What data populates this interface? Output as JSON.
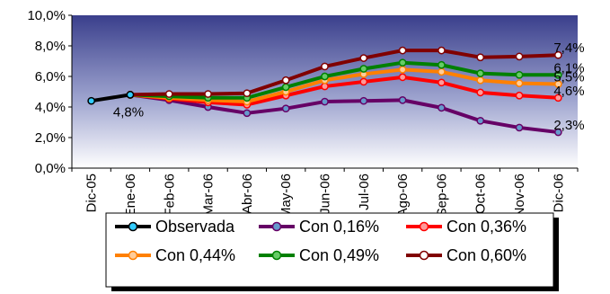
{
  "chart_data": {
    "type": "line",
    "title": "",
    "xlabel": "",
    "ylabel": "",
    "categories": [
      "Dic-05",
      "Ene-06",
      "Feb-06",
      "Mar-06",
      "Abr-06",
      "May-06",
      "Jun-06",
      "Jul-06",
      "Ago-06",
      "Sep-06",
      "Oct-06",
      "Nov-06",
      "Dic-06"
    ],
    "ylim": [
      0,
      10
    ],
    "yticks": [
      "0,0%",
      "2,0%",
      "4,0%",
      "6,0%",
      "8,0%",
      "10,0%"
    ],
    "ytick_values": [
      0,
      2,
      4,
      6,
      8,
      10
    ],
    "grid": false,
    "legend_position": "bottom",
    "series": [
      {
        "name": "Observada",
        "color": "#000000",
        "marker_fill": "#33ccff",
        "values": [
          4.4,
          4.8,
          null,
          null,
          null,
          null,
          null,
          null,
          null,
          null,
          null,
          null,
          null
        ]
      },
      {
        "name": "Con 0,16%",
        "color": "#660066",
        "marker_fill": "#6699cc",
        "values": [
          null,
          4.8,
          4.45,
          4.0,
          3.6,
          3.9,
          4.35,
          4.4,
          4.45,
          3.95,
          3.1,
          2.65,
          2.35
        ]
      },
      {
        "name": "Con 0,36%",
        "color": "#ff0000",
        "marker_fill": "#ff9999",
        "values": [
          null,
          4.8,
          4.55,
          4.3,
          4.15,
          4.75,
          5.35,
          5.65,
          5.95,
          5.6,
          4.95,
          4.75,
          4.6
        ]
      },
      {
        "name": "Con 0,44%",
        "color": "#ff8000",
        "marker_fill": "#ffcc99",
        "values": [
          null,
          4.8,
          4.6,
          4.45,
          4.35,
          5.0,
          5.75,
          6.15,
          6.45,
          6.3,
          5.75,
          5.55,
          5.5
        ]
      },
      {
        "name": "Con 0,49%",
        "color": "#008000",
        "marker_fill": "#66cc66",
        "values": [
          null,
          4.8,
          4.7,
          4.6,
          4.6,
          5.3,
          6.0,
          6.5,
          6.9,
          6.75,
          6.2,
          6.1,
          6.1
        ]
      },
      {
        "name": "Con 0,60%",
        "color": "#800000",
        "marker_fill": "#ffffff",
        "values": [
          null,
          4.8,
          4.85,
          4.85,
          4.9,
          5.75,
          6.65,
          7.2,
          7.7,
          7.7,
          7.25,
          7.3,
          7.4
        ]
      }
    ],
    "annotations": [
      {
        "text": "4,8%",
        "category": "Ene-06",
        "value": 4.8
      },
      {
        "text": "7,4%",
        "category": "Dic-06",
        "value": 7.4
      },
      {
        "text": "6,1%",
        "category": "Dic-06",
        "value": 6.1
      },
      {
        "text": "5,5%",
        "category": "Dic-06",
        "value": 5.5
      },
      {
        "text": "4,6%",
        "category": "Dic-06",
        "value": 4.6
      },
      {
        "text": "2,3%",
        "category": "Dic-06",
        "value": 2.35
      }
    ]
  }
}
